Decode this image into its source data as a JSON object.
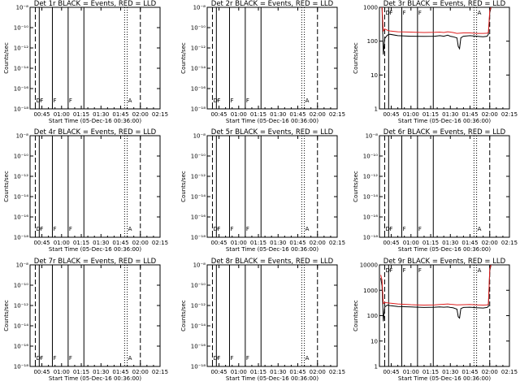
{
  "chart_data": [
    {
      "type": "line",
      "title": "Det 1r BLACK = Events, RED = LLD",
      "xlabel": "Start Time (05-Dec-16 00:36:00)",
      "ylabel": "Counts/sec",
      "ylog": true,
      "ylim": [
        1e-18,
        1e-08
      ],
      "yticks": [
        1e-18,
        1e-16,
        1e-14,
        1e-12,
        1e-10,
        1e-08
      ],
      "ytick_labels": [
        "10⁻¹⁸",
        "10⁻¹⁶",
        "10⁻¹⁴",
        "10⁻¹²",
        "10⁻¹⁰",
        "10⁻⁸"
      ],
      "xlim_minutes": [
        36,
        135
      ],
      "xticks": [
        "00:45",
        "01:00",
        "01:15",
        "01:30",
        "01:45",
        "02:00",
        "02:15"
      ],
      "grid": false,
      "annotations": [
        "D",
        "F",
        "F",
        "F",
        "A"
      ],
      "series": []
    },
    {
      "type": "line",
      "title": "Det 2r BLACK = Events, RED = LLD",
      "xlabel": "Start Time (05-Dec-16 00:36:00)",
      "ylabel": "Counts/sec",
      "ylog": true,
      "ylim": [
        1e-18,
        1e-08
      ],
      "yticks": [
        1e-18,
        1e-16,
        1e-14,
        1e-12,
        1e-10,
        1e-08
      ],
      "ytick_labels": [
        "10⁻¹⁸",
        "10⁻¹⁶",
        "10⁻¹⁴",
        "10⁻¹²",
        "10⁻¹⁰",
        "10⁻⁸"
      ],
      "xlim_minutes": [
        36,
        135
      ],
      "xticks": [
        "00:45",
        "01:00",
        "01:15",
        "01:30",
        "01:45",
        "02:00",
        "02:15"
      ],
      "grid": false,
      "annotations": [
        "D",
        "F",
        "F",
        "F",
        "A"
      ],
      "series": []
    },
    {
      "type": "line",
      "title": "Det 3r BLACK = Events, RED = LLD",
      "xlabel": "Start Time (05-Dec-16 00:36:00)",
      "ylabel": "Counts/sec",
      "ylog": true,
      "ylim": [
        1,
        1000
      ],
      "yticks": [
        1,
        10,
        100,
        1000
      ],
      "ytick_labels": [
        "1",
        "10",
        "100",
        "1000"
      ],
      "xlim_minutes": [
        36,
        135
      ],
      "xticks": [
        "00:45",
        "01:00",
        "01:15",
        "01:30",
        "01:45",
        "02:00",
        "02:15"
      ],
      "grid": false,
      "annotations": [
        "D",
        "F",
        "F",
        "F",
        "A"
      ],
      "series": [
        {
          "color": "#000000",
          "x": [
            38,
            39,
            40,
            42,
            44,
            50,
            60,
            70,
            78,
            82,
            85,
            88,
            90,
            92,
            95,
            96,
            97,
            98,
            100,
            105,
            110,
            115,
            118,
            119,
            120,
            121
          ],
          "y": [
            1000,
            40,
            120,
            150,
            160,
            145,
            140,
            138,
            140,
            145,
            140,
            150,
            140,
            135,
            125,
            70,
            60,
            125,
            140,
            145,
            140,
            135,
            140,
            160,
            700,
            1000
          ]
        },
        {
          "color": "#e02020",
          "x": [
            38,
            39,
            40,
            42,
            44,
            50,
            60,
            70,
            78,
            82,
            85,
            88,
            90,
            92,
            95,
            100,
            105,
            110,
            115,
            118,
            119,
            120,
            121
          ],
          "y": [
            1000,
            200,
            230,
            210,
            200,
            190,
            185,
            180,
            182,
            185,
            180,
            190,
            185,
            180,
            170,
            175,
            175,
            170,
            170,
            172,
            180,
            800,
            1000
          ]
        }
      ]
    },
    {
      "type": "line",
      "title": "Det 4r BLACK = Events, RED = LLD",
      "xlabel": "Start Time (05-Dec-16 00:36:00)",
      "ylabel": "Counts/sec",
      "ylog": true,
      "ylim": [
        1e-18,
        1e-08
      ],
      "yticks": [
        1e-18,
        1e-16,
        1e-14,
        1e-12,
        1e-10,
        1e-08
      ],
      "ytick_labels": [
        "10⁻¹⁸",
        "10⁻¹⁶",
        "10⁻¹⁴",
        "10⁻¹²",
        "10⁻¹⁰",
        "10⁻⁸"
      ],
      "xlim_minutes": [
        36,
        135
      ],
      "xticks": [
        "00:45",
        "01:00",
        "01:15",
        "01:30",
        "01:45",
        "02:00",
        "02:15"
      ],
      "grid": false,
      "annotations": [
        "D",
        "F",
        "F",
        "F",
        "A"
      ],
      "series": []
    },
    {
      "type": "line",
      "title": "Det 5r BLACK = Events, RED = LLD",
      "xlabel": "Start Time (05-Dec-16 00:36:00)",
      "ylabel": "Counts/sec",
      "ylog": true,
      "ylim": [
        1e-18,
        1e-08
      ],
      "yticks": [
        1e-18,
        1e-16,
        1e-14,
        1e-12,
        1e-10,
        1e-08
      ],
      "ytick_labels": [
        "10⁻¹⁸",
        "10⁻¹⁶",
        "10⁻¹⁴",
        "10⁻¹²",
        "10⁻¹⁰",
        "10⁻⁸"
      ],
      "xlim_minutes": [
        36,
        135
      ],
      "xticks": [
        "00:45",
        "01:00",
        "01:15",
        "01:30",
        "01:45",
        "02:00",
        "02:15"
      ],
      "grid": false,
      "annotations": [
        "D",
        "F",
        "F",
        "F",
        "A"
      ],
      "series": []
    },
    {
      "type": "line",
      "title": "Det 6r BLACK = Events, RED = LLD",
      "xlabel": "Start Time (05-Dec-16 00:36:00)",
      "ylabel": "Counts/sec",
      "ylog": true,
      "ylim": [
        1e-18,
        1e-08
      ],
      "yticks": [
        1e-18,
        1e-16,
        1e-14,
        1e-12,
        1e-10,
        1e-08
      ],
      "ytick_labels": [
        "10⁻¹⁸",
        "10⁻¹⁶",
        "10⁻¹⁴",
        "10⁻¹²",
        "10⁻¹⁰",
        "10⁻⁸"
      ],
      "xlim_minutes": [
        36,
        135
      ],
      "xticks": [
        "00:45",
        "01:00",
        "01:15",
        "01:30",
        "01:45",
        "02:00",
        "02:15"
      ],
      "grid": false,
      "annotations": [
        "D",
        "F",
        "F",
        "F",
        "A"
      ],
      "series": []
    },
    {
      "type": "line",
      "title": "Det 7r BLACK = Events, RED = LLD",
      "xlabel": "Start Time (05-Dec-16 00:36:00)",
      "ylabel": "Counts/sec",
      "ylog": true,
      "ylim": [
        1e-18,
        1e-08
      ],
      "yticks": [
        1e-18,
        1e-16,
        1e-14,
        1e-12,
        1e-10,
        1e-08
      ],
      "ytick_labels": [
        "10⁻¹⁸",
        "10⁻¹⁶",
        "10⁻¹⁴",
        "10⁻¹²",
        "10⁻¹⁰",
        "10⁻⁸"
      ],
      "xlim_minutes": [
        36,
        135
      ],
      "xticks": [
        "00:45",
        "01:00",
        "01:15",
        "01:30",
        "01:45",
        "02:00",
        "02:15"
      ],
      "grid": false,
      "annotations": [
        "D",
        "F",
        "F",
        "F",
        "A"
      ],
      "series": []
    },
    {
      "type": "line",
      "title": "Det 8r BLACK = Events, RED = LLD",
      "xlabel": "Start Time (05-Dec-16 00:36:00)",
      "ylabel": "Counts/sec",
      "ylog": true,
      "ylim": [
        1e-18,
        1e-08
      ],
      "yticks": [
        1e-18,
        1e-16,
        1e-14,
        1e-12,
        1e-10,
        1e-08
      ],
      "ytick_labels": [
        "10⁻¹⁸",
        "10⁻¹⁶",
        "10⁻¹⁴",
        "10⁻¹²",
        "10⁻¹⁰",
        "10⁻⁸"
      ],
      "xlim_minutes": [
        36,
        135
      ],
      "xticks": [
        "00:45",
        "01:00",
        "01:15",
        "01:30",
        "01:45",
        "02:00",
        "02:15"
      ],
      "grid": false,
      "annotations": [
        "D",
        "F",
        "F",
        "F",
        "A"
      ],
      "series": []
    },
    {
      "type": "line",
      "title": "Det 9r BLACK = Events, RED = LLD",
      "xlabel": "Start Time (05-Dec-16 00:36:00)",
      "ylabel": "Counts/sec",
      "ylog": true,
      "ylim": [
        1,
        10000
      ],
      "yticks": [
        1,
        10,
        100,
        1000,
        10000
      ],
      "ytick_labels": [
        "1",
        "10",
        "100",
        "1000",
        "10000"
      ],
      "xlim_minutes": [
        36,
        135
      ],
      "xticks": [
        "00:45",
        "01:00",
        "01:15",
        "01:30",
        "01:45",
        "02:00",
        "02:15"
      ],
      "grid": false,
      "annotations": [
        "D",
        "F",
        "F",
        "F",
        "A"
      ],
      "series": [
        {
          "color": "#000000",
          "x": [
            37,
            38,
            39,
            40,
            42,
            44,
            50,
            60,
            70,
            78,
            82,
            85,
            88,
            90,
            92,
            95,
            96,
            97,
            98,
            100,
            105,
            110,
            115,
            118,
            119,
            120,
            121
          ],
          "y": [
            3000,
            1500,
            60,
            220,
            260,
            250,
            230,
            220,
            210,
            215,
            220,
            215,
            220,
            210,
            205,
            180,
            90,
            80,
            190,
            210,
            215,
            205,
            200,
            210,
            230,
            6000,
            10000
          ]
        },
        {
          "color": "#e02020",
          "x": [
            37,
            38,
            39,
            40,
            42,
            44,
            50,
            60,
            70,
            78,
            82,
            85,
            88,
            90,
            92,
            95,
            100,
            105,
            110,
            115,
            118,
            119,
            120,
            121
          ],
          "y": [
            4000,
            2500,
            300,
            330,
            320,
            310,
            290,
            270,
            260,
            265,
            275,
            280,
            290,
            280,
            275,
            265,
            270,
            275,
            265,
            260,
            265,
            280,
            7000,
            10000
          ]
        }
      ]
    }
  ],
  "markers": {
    "dashed_x": [
      40,
      120
    ],
    "solid_x": [
      43,
      53,
      65,
      77
    ],
    "dotted_x": [
      108,
      110
    ]
  }
}
